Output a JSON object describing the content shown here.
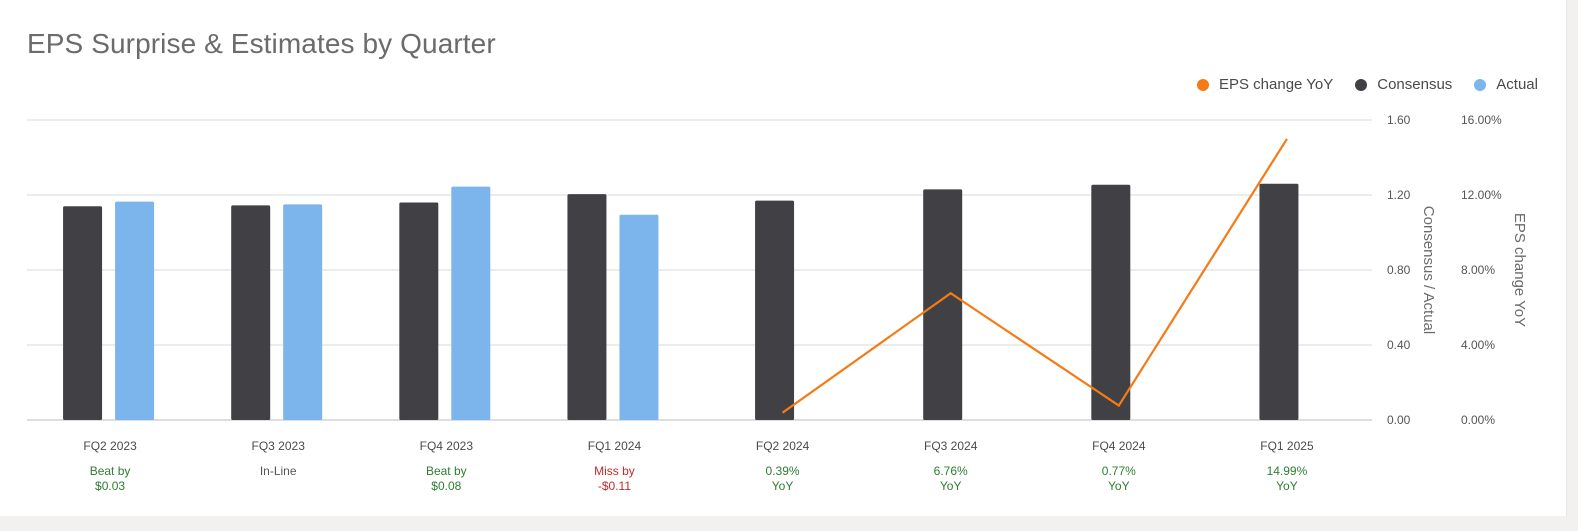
{
  "chart_data": {
    "type": "bar",
    "title": "EPS Surprise & Estimates by Quarter",
    "categories": [
      "FQ2 2023",
      "FQ3 2023",
      "FQ4 2023",
      "FQ1 2024",
      "FQ2 2024",
      "FQ3 2024",
      "FQ4 2024",
      "FQ1 2025"
    ],
    "series": [
      {
        "name": "Consensus",
        "type": "bar",
        "color": "#414045",
        "values": [
          1.14,
          1.145,
          1.16,
          1.205,
          1.17,
          1.23,
          1.255,
          1.26
        ]
      },
      {
        "name": "Actual",
        "type": "bar",
        "color": "#7cb5ec",
        "values": [
          1.165,
          1.15,
          1.245,
          1.095,
          null,
          null,
          null,
          null
        ]
      },
      {
        "name": "EPS change YoY",
        "type": "line",
        "axis": "right",
        "color": "#f47b16",
        "values": [
          null,
          null,
          null,
          null,
          0.39,
          6.76,
          0.77,
          14.99
        ]
      }
    ],
    "ylabel": "Consensus / Actual",
    "y2label": "EPS change YoY",
    "ylim": [
      0,
      1.6
    ],
    "y2lim": [
      0,
      16
    ],
    "yticks": [
      "0.00",
      "0.40",
      "0.80",
      "1.20",
      "1.60"
    ],
    "y2ticks": [
      "0.00%",
      "4.00%",
      "8.00%",
      "12.00%",
      "16.00%"
    ],
    "grid": true,
    "legend_position": "top-right",
    "legend": [
      {
        "name": "EPS change YoY",
        "color": "#f47b16"
      },
      {
        "name": "Consensus",
        "color": "#414045"
      },
      {
        "name": "Actual",
        "color": "#7cb5ec"
      }
    ],
    "annotations": [
      {
        "line1": "Beat by",
        "line2": "$0.03",
        "color": "#2e7d32"
      },
      {
        "line1": "In-Line",
        "line2": "",
        "color": "#555555"
      },
      {
        "line1": "Beat by",
        "line2": "$0.08",
        "color": "#2e7d32"
      },
      {
        "line1": "Miss by",
        "line2": "-$0.11",
        "color": "#c62828"
      },
      {
        "line1": "0.39%",
        "line2": "YoY",
        "color": "#2e7d32"
      },
      {
        "line1": "6.76%",
        "line2": "YoY",
        "color": "#2e7d32"
      },
      {
        "line1": "0.77%",
        "line2": "YoY",
        "color": "#2e7d32"
      },
      {
        "line1": "14.99%",
        "line2": "YoY",
        "color": "#2e7d32"
      }
    ]
  }
}
